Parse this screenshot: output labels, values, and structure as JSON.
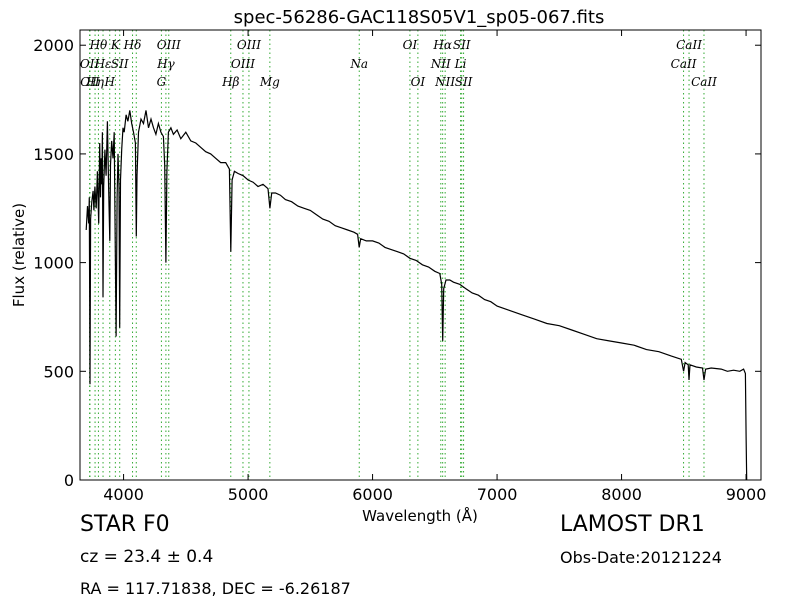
{
  "chart_data": {
    "type": "line",
    "title": "spec-56286-GAC118S05V1_sp05-067.fits",
    "xlabel": "Wavelength (Å)",
    "ylabel": "Flux (relative)",
    "xlim": [
      3650,
      9120
    ],
    "ylim": [
      0,
      2070
    ],
    "xticks": [
      4000,
      5000,
      6000,
      7000,
      8000,
      9000
    ],
    "yticks": [
      0,
      500,
      1000,
      1500,
      2000
    ],
    "grid": false,
    "line_color": "#000000",
    "marker_line_color": "#33aa33",
    "series": [
      {
        "points": [
          [
            3700,
            1150
          ],
          [
            3710,
            1260
          ],
          [
            3720,
            1180
          ],
          [
            3725,
            1300
          ],
          [
            3730,
            440
          ],
          [
            3735,
            1200
          ],
          [
            3745,
            1280
          ],
          [
            3755,
            1330
          ],
          [
            3762,
            1240
          ],
          [
            3770,
            1350
          ],
          [
            3780,
            1250
          ],
          [
            3790,
            1420
          ],
          [
            3800,
            1180
          ],
          [
            3808,
            1550
          ],
          [
            3815,
            1300
          ],
          [
            3820,
            1480
          ],
          [
            3825,
            1360
          ],
          [
            3830,
            1600
          ],
          [
            3835,
            840
          ],
          [
            3840,
            1350
          ],
          [
            3850,
            1520
          ],
          [
            3860,
            1400
          ],
          [
            3870,
            1650
          ],
          [
            3880,
            1350
          ],
          [
            3889,
            1100
          ],
          [
            3895,
            1450
          ],
          [
            3905,
            1560
          ],
          [
            3915,
            1480
          ],
          [
            3925,
            1600
          ],
          [
            3933,
            1100
          ],
          [
            3940,
            660
          ],
          [
            3948,
            1300
          ],
          [
            3955,
            1500
          ],
          [
            3963,
            1350
          ],
          [
            3969,
            700
          ],
          [
            3975,
            1380
          ],
          [
            3985,
            1520
          ],
          [
            3995,
            1620
          ],
          [
            4005,
            1600
          ],
          [
            4020,
            1680
          ],
          [
            4035,
            1650
          ],
          [
            4050,
            1700
          ],
          [
            4065,
            1640
          ],
          [
            4080,
            1600
          ],
          [
            4095,
            1550
          ],
          [
            4102,
            1120
          ],
          [
            4108,
            1400
          ],
          [
            4120,
            1600
          ],
          [
            4140,
            1660
          ],
          [
            4160,
            1640
          ],
          [
            4180,
            1700
          ],
          [
            4200,
            1620
          ],
          [
            4220,
            1660
          ],
          [
            4240,
            1620
          ],
          [
            4260,
            1590
          ],
          [
            4280,
            1640
          ],
          [
            4300,
            1600
          ],
          [
            4320,
            1580
          ],
          [
            4330,
            1450
          ],
          [
            4340,
            1000
          ],
          [
            4348,
            1420
          ],
          [
            4360,
            1600
          ],
          [
            4380,
            1620
          ],
          [
            4400,
            1590
          ],
          [
            4430,
            1610
          ],
          [
            4460,
            1570
          ],
          [
            4500,
            1600
          ],
          [
            4540,
            1560
          ],
          [
            4580,
            1550
          ],
          [
            4620,
            1530
          ],
          [
            4660,
            1510
          ],
          [
            4700,
            1500
          ],
          [
            4740,
            1480
          ],
          [
            4780,
            1460
          ],
          [
            4820,
            1460
          ],
          [
            4850,
            1430
          ],
          [
            4861,
            1050
          ],
          [
            4872,
            1380
          ],
          [
            4890,
            1420
          ],
          [
            4920,
            1410
          ],
          [
            4960,
            1400
          ],
          [
            5000,
            1380
          ],
          [
            5040,
            1370
          ],
          [
            5080,
            1350
          ],
          [
            5120,
            1360
          ],
          [
            5160,
            1340
          ],
          [
            5175,
            1250
          ],
          [
            5190,
            1320
          ],
          [
            5220,
            1320
          ],
          [
            5260,
            1310
          ],
          [
            5300,
            1290
          ],
          [
            5350,
            1280
          ],
          [
            5400,
            1260
          ],
          [
            5450,
            1250
          ],
          [
            5500,
            1240
          ],
          [
            5550,
            1220
          ],
          [
            5600,
            1200
          ],
          [
            5650,
            1190
          ],
          [
            5700,
            1170
          ],
          [
            5750,
            1160
          ],
          [
            5800,
            1150
          ],
          [
            5850,
            1140
          ],
          [
            5880,
            1130
          ],
          [
            5893,
            1070
          ],
          [
            5905,
            1110
          ],
          [
            5950,
            1100
          ],
          [
            6000,
            1100
          ],
          [
            6050,
            1090
          ],
          [
            6100,
            1070
          ],
          [
            6150,
            1060
          ],
          [
            6200,
            1050
          ],
          [
            6250,
            1040
          ],
          [
            6300,
            1020
          ],
          [
            6350,
            1010
          ],
          [
            6400,
            990
          ],
          [
            6450,
            980
          ],
          [
            6500,
            960
          ],
          [
            6540,
            950
          ],
          [
            6555,
            900
          ],
          [
            6563,
            640
          ],
          [
            6571,
            880
          ],
          [
            6590,
            920
          ],
          [
            6620,
            920
          ],
          [
            6650,
            910
          ],
          [
            6700,
            900
          ],
          [
            6750,
            880
          ],
          [
            6800,
            860
          ],
          [
            6850,
            850
          ],
          [
            6900,
            830
          ],
          [
            6950,
            820
          ],
          [
            7000,
            800
          ],
          [
            7100,
            780
          ],
          [
            7200,
            760
          ],
          [
            7300,
            740
          ],
          [
            7400,
            720
          ],
          [
            7500,
            710
          ],
          [
            7600,
            690
          ],
          [
            7700,
            670
          ],
          [
            7800,
            650
          ],
          [
            7900,
            640
          ],
          [
            8000,
            630
          ],
          [
            8100,
            620
          ],
          [
            8200,
            600
          ],
          [
            8300,
            590
          ],
          [
            8400,
            570
          ],
          [
            8480,
            555
          ],
          [
            8498,
            500
          ],
          [
            8510,
            540
          ],
          [
            8535,
            530
          ],
          [
            8542,
            460
          ],
          [
            8550,
            530
          ],
          [
            8600,
            520
          ],
          [
            8650,
            515
          ],
          [
            8662,
            460
          ],
          [
            8675,
            510
          ],
          [
            8720,
            515
          ],
          [
            8800,
            510
          ],
          [
            8850,
            500
          ],
          [
            8900,
            505
          ],
          [
            8950,
            500
          ],
          [
            8980,
            510
          ],
          [
            8995,
            490
          ],
          [
            9000,
            200
          ],
          [
            9005,
            0
          ]
        ]
      }
    ],
    "spectral_lines": [
      {
        "x": 3727,
        "label": "OII",
        "row": 1
      },
      {
        "x": 3730,
        "label": "OII",
        "row": 2
      },
      {
        "x": 3771,
        "label": "Hη",
        "row": 2
      },
      {
        "x": 3798,
        "label": "Hθ",
        "row": 0
      },
      {
        "x": 3835,
        "label": "Hε",
        "row": 1
      },
      {
        "x": 3889,
        "label": "H",
        "row": 2
      },
      {
        "x": 3934,
        "label": "K",
        "row": 0
      },
      {
        "x": 3969,
        "label": "SII",
        "row": 1
      },
      {
        "x": 4072,
        "label": "Hδ",
        "row": 0
      },
      {
        "x": 4102,
        "label": "",
        "row": -1
      },
      {
        "x": 4304,
        "label": "G",
        "row": 2
      },
      {
        "x": 4340,
        "label": "Hγ",
        "row": 1
      },
      {
        "x": 4363,
        "label": "OIII",
        "row": 0
      },
      {
        "x": 4861,
        "label": "Hβ",
        "row": 2
      },
      {
        "x": 4959,
        "label": "OIII",
        "row": 1
      },
      {
        "x": 5007,
        "label": "OIII",
        "row": 0
      },
      {
        "x": 5175,
        "label": "Mg",
        "row": 2
      },
      {
        "x": 5893,
        "label": "Na",
        "row": 1
      },
      {
        "x": 6300,
        "label": "OI",
        "row": 0
      },
      {
        "x": 6364,
        "label": "OI",
        "row": 2
      },
      {
        "x": 6548,
        "label": "NII",
        "row": 1
      },
      {
        "x": 6563,
        "label": "Hα",
        "row": 0
      },
      {
        "x": 6583,
        "label": "NII",
        "row": 2
      },
      {
        "x": 6707,
        "label": "Li",
        "row": 1
      },
      {
        "x": 6716,
        "label": "SII",
        "row": 0
      },
      {
        "x": 6731,
        "label": "SII",
        "row": 2
      },
      {
        "x": 8498,
        "label": "CaII",
        "row": 1
      },
      {
        "x": 8542,
        "label": "CaII",
        "row": 0
      },
      {
        "x": 8662,
        "label": "CaII",
        "row": 2
      }
    ]
  },
  "info": {
    "object_class": "STAR   F0",
    "survey": "LAMOST DR1",
    "cz": "cz = 23.4  ± 0.4",
    "obs_date": "Obs-Date:20121224",
    "radec": "RA = 117.71838, DEC = -6.26187"
  }
}
